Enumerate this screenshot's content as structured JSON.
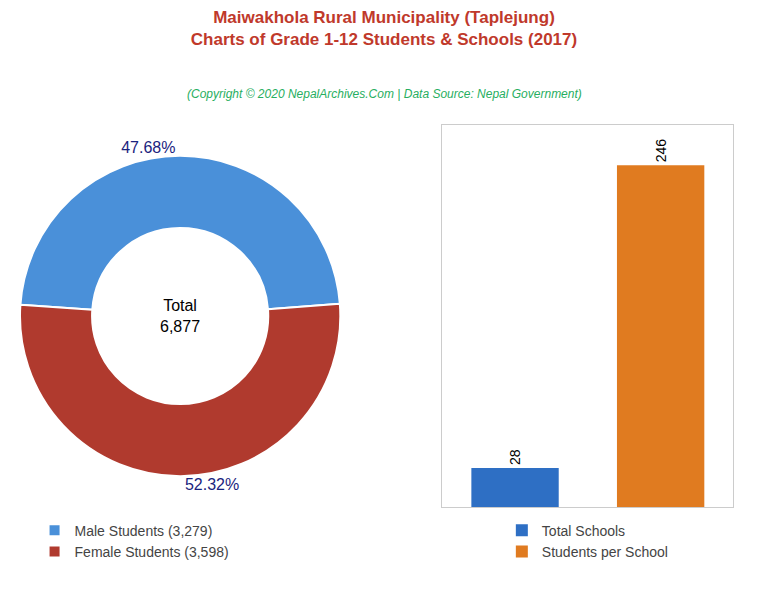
{
  "chart_data": [
    {
      "type": "pie",
      "title": "Maiwakhola Rural Municipality (Taplejung)\nCharts of Grade 1-12 Students & Schools (2017)",
      "subtitle": "(Copyright © 2020 NepalArchives.Com | Data Source: Nepal Government)",
      "categories": [
        "Male Students (3,279)",
        "Female Students (3,598)"
      ],
      "values": [
        47.68,
        52.32
      ],
      "value_labels": [
        "47.68%",
        "52.32%"
      ],
      "data_labels": true,
      "colors": [
        "#4a90d9",
        "#b03a2e"
      ],
      "annotations": [
        "Total",
        "6,877"
      ],
      "legend": "bottom"
    },
    {
      "type": "bar",
      "categories": [
        "Total Schools",
        "Students per School"
      ],
      "values": [
        28,
        246
      ],
      "colors": [
        "#2e6fc4",
        "#e07b20"
      ],
      "data_labels": true,
      "ylim": [
        0,
        275
      ],
      "tick_labels": false,
      "grid": false,
      "legend": "bottom"
    }
  ]
}
